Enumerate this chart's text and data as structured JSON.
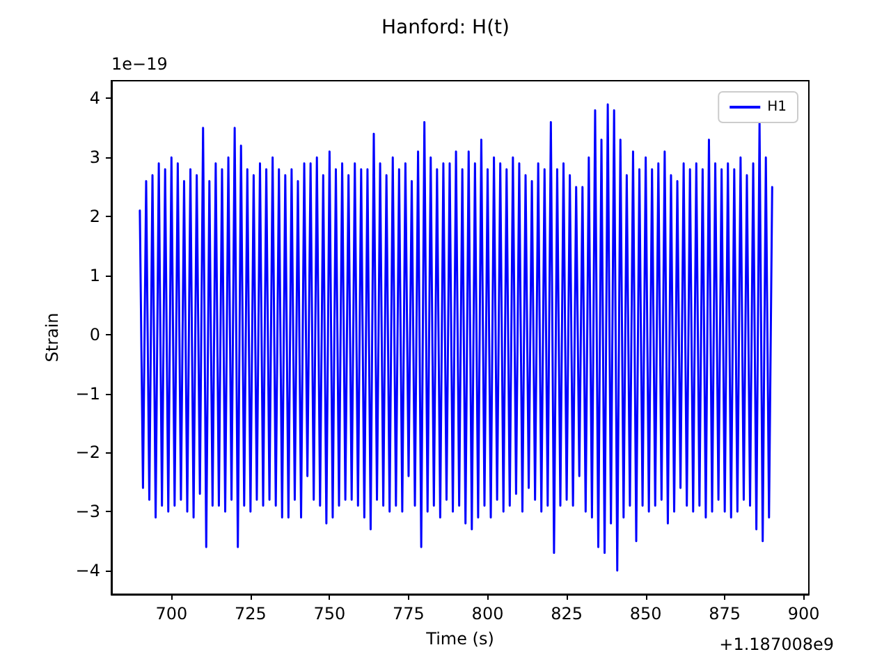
{
  "chart_data": {
    "type": "line",
    "title": "Hanford: H(t)",
    "xlabel": "Time (s)",
    "ylabel": "Strain",
    "annotations": [
      "1e−19",
      "+1.187008e9"
    ],
    "xlim": [
      681,
      901.6
    ],
    "xticks": [
      700,
      725,
      750,
      775,
      800,
      825,
      850,
      875,
      900
    ],
    "ylim": [
      -4.4,
      4.3
    ],
    "yticks": [
      -4,
      -3,
      -2,
      -1,
      0,
      1,
      2,
      3,
      4
    ],
    "grid": false,
    "legend": "top right",
    "marker": "none",
    "line_style": "solid",
    "series": [
      {
        "name": "H1",
        "color": "#0000ff",
        "x": [
          690,
          691,
          692,
          693,
          694,
          695,
          696,
          697,
          698,
          699,
          700,
          701,
          702,
          703,
          704,
          705,
          706,
          707,
          708,
          709,
          710,
          711,
          712,
          713,
          714,
          715,
          716,
          717,
          718,
          719,
          720,
          721,
          722,
          723,
          724,
          725,
          726,
          727,
          728,
          729,
          730,
          731,
          732,
          733,
          734,
          735,
          736,
          737,
          738,
          739,
          740,
          741,
          742,
          743,
          744,
          745,
          746,
          747,
          748,
          749,
          750,
          751,
          752,
          753,
          754,
          755,
          756,
          757,
          758,
          759,
          760,
          761,
          762,
          763,
          764,
          765,
          766,
          767,
          768,
          769,
          770,
          771,
          772,
          773,
          774,
          775,
          776,
          777,
          778,
          779,
          780,
          781,
          782,
          783,
          784,
          785,
          786,
          787,
          788,
          789,
          790,
          791,
          792,
          793,
          794,
          795,
          796,
          797,
          798,
          799,
          800,
          801,
          802,
          803,
          804,
          805,
          806,
          807,
          808,
          809,
          810,
          811,
          812,
          813,
          814,
          815,
          816,
          817,
          818,
          819,
          820,
          821,
          822,
          823,
          824,
          825,
          826,
          827,
          828,
          829,
          830,
          831,
          832,
          833,
          834,
          835,
          836,
          837,
          838,
          839,
          840,
          841,
          842,
          843,
          844,
          845,
          846,
          847,
          848,
          849,
          850,
          851,
          852,
          853,
          854,
          855,
          856,
          857,
          858,
          859,
          860,
          861,
          862,
          863,
          864,
          865,
          866,
          867,
          868,
          869,
          870,
          871,
          872,
          873,
          874,
          875,
          876,
          877,
          878,
          879,
          880,
          881,
          882,
          883,
          884,
          885,
          886,
          887,
          888,
          889,
          890
        ],
        "values": [
          2.1,
          -2.6,
          2.6,
          -2.8,
          2.7,
          -3.1,
          2.9,
          -2.9,
          2.8,
          -3.0,
          3.0,
          -2.9,
          2.9,
          -2.8,
          2.6,
          -3.0,
          2.8,
          -3.1,
          2.7,
          -2.7,
          3.5,
          -3.6,
          2.6,
          -2.9,
          2.9,
          -2.9,
          2.8,
          -3.0,
          3.0,
          -2.8,
          3.5,
          -3.6,
          3.2,
          -2.9,
          2.8,
          -3.0,
          2.7,
          -2.8,
          2.9,
          -2.9,
          2.8,
          -2.8,
          3.0,
          -2.9,
          2.8,
          -3.1,
          2.7,
          -3.1,
          2.8,
          -2.8,
          2.6,
          -3.1,
          2.9,
          -2.4,
          2.9,
          -2.8,
          3.0,
          -2.9,
          2.7,
          -3.2,
          3.1,
          -3.1,
          2.8,
          -2.9,
          2.9,
          -2.8,
          2.7,
          -2.8,
          2.9,
          -2.9,
          2.8,
          -3.1,
          2.8,
          -3.3,
          3.4,
          -2.8,
          2.9,
          -2.9,
          2.7,
          -3.0,
          3.0,
          -2.9,
          2.8,
          -3.0,
          2.9,
          -2.4,
          2.6,
          -2.9,
          3.1,
          -3.6,
          3.6,
          -3.0,
          3.0,
          -2.9,
          2.8,
          -3.1,
          2.9,
          -2.8,
          2.9,
          -3.0,
          3.1,
          -2.9,
          2.8,
          -3.2,
          3.1,
          -3.3,
          2.9,
          -3.1,
          3.3,
          -2.9,
          2.8,
          -3.1,
          3.0,
          -2.8,
          2.9,
          -3.0,
          2.8,
          -2.9,
          3.0,
          -2.7,
          2.9,
          -3.0,
          2.7,
          -2.6,
          2.6,
          -2.8,
          2.9,
          -3.0,
          2.8,
          -2.9,
          3.6,
          -3.7,
          2.8,
          -2.9,
          2.9,
          -2.8,
          2.7,
          -2.9,
          2.5,
          -2.4,
          2.5,
          -3.0,
          3.0,
          -3.1,
          3.8,
          -3.6,
          3.3,
          -3.7,
          3.9,
          -3.2,
          3.8,
          -4.0,
          3.3,
          -3.1,
          2.7,
          -2.9,
          3.1,
          -3.5,
          2.8,
          -2.9,
          3.0,
          -3.0,
          2.8,
          -2.9,
          2.9,
          -2.8,
          3.1,
          -3.2,
          2.7,
          -3.0,
          2.6,
          -2.6,
          2.9,
          -2.9,
          2.8,
          -3.0,
          2.9,
          -2.9,
          2.8,
          -3.1,
          3.3,
          -3.0,
          2.9,
          -2.8,
          2.8,
          -3.0,
          2.9,
          -3.1,
          2.8,
          -3.0,
          3.0,
          -2.8,
          2.7,
          -2.9,
          2.9,
          -3.3,
          3.6,
          -3.5,
          3.0,
          -3.1,
          2.5
        ]
      }
    ]
  }
}
